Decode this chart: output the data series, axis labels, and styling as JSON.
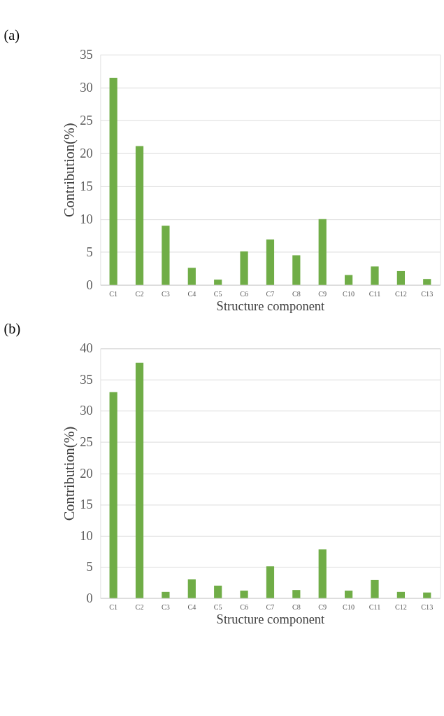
{
  "chart_data": [
    {
      "type": "bar",
      "title": "(a)",
      "xlabel": "Structure component",
      "ylabel": "Contribution(%)",
      "categories": [
        "C1",
        "C2",
        "C3",
        "C4",
        "C5",
        "C6",
        "C7",
        "C8",
        "C9",
        "C10",
        "C11",
        "C12",
        "C13"
      ],
      "series": [
        {
          "color": "#70ad47",
          "values": [
            31.5,
            21.1,
            9.0,
            2.6,
            0.8,
            5.1,
            6.9,
            4.5,
            10.0,
            1.5,
            2.8,
            2.1,
            0.9
          ]
        }
      ],
      "ylim": [
        0,
        35
      ],
      "yticks": [
        0,
        5,
        10,
        15,
        20,
        25,
        30,
        35
      ],
      "grid": "y"
    },
    {
      "type": "bar",
      "title": "(b)",
      "xlabel": "Structure component",
      "ylabel": "Contribution(%)",
      "categories": [
        "C1",
        "C2",
        "C3",
        "C4",
        "C5",
        "C6",
        "C7",
        "C8",
        "C9",
        "C10",
        "C11",
        "C12",
        "C13"
      ],
      "series": [
        {
          "color": "#70ad47",
          "values": [
            33.0,
            37.7,
            1.0,
            3.0,
            2.0,
            1.2,
            5.1,
            1.3,
            7.8,
            1.2,
            2.9,
            1.0,
            0.9
          ]
        }
      ],
      "ylim": [
        0,
        40
      ],
      "yticks": [
        0,
        5,
        10,
        15,
        20,
        25,
        30,
        35,
        40
      ],
      "grid": "y"
    }
  ]
}
